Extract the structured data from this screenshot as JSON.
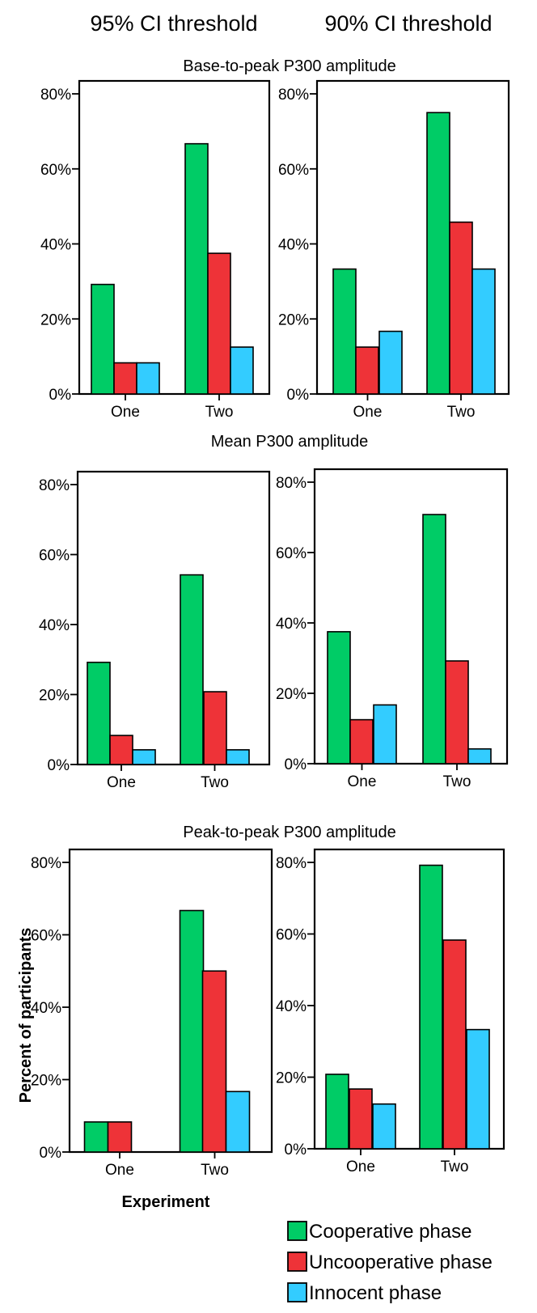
{
  "column_headers": [
    "95% CI threshold",
    "90% CI threshold"
  ],
  "section_titles": [
    "Base-to-peak P300 amplitude",
    "Mean P300 amplitude",
    "Peak-to-peak P300 amplitude"
  ],
  "axis": {
    "ylabel": "Percent of participants",
    "xlabel": "Experiment"
  },
  "legend": [
    {
      "label": "Cooperative phase",
      "color": "#00cc66"
    },
    {
      "label": "Uncooperative phase",
      "color": "#ee3338"
    },
    {
      "label": "Innocent phase",
      "color": "#33ccff"
    }
  ],
  "chart_data": [
    {
      "type": "bar",
      "row": 0,
      "col": 0,
      "title": "Base-to-peak P300 amplitude",
      "xlabel": "",
      "ylabel": "",
      "categories": [
        "One",
        "Two"
      ],
      "yticks": [
        "0%",
        "20%",
        "40%",
        "60%",
        "80%"
      ],
      "ylim": [
        0,
        80
      ],
      "series": [
        {
          "name": "Cooperative phase",
          "values": [
            29.2,
            66.7
          ]
        },
        {
          "name": "Uncooperative phase",
          "values": [
            8.3,
            37.5
          ]
        },
        {
          "name": "Innocent phase",
          "values": [
            8.3,
            12.5
          ]
        }
      ]
    },
    {
      "type": "bar",
      "row": 0,
      "col": 1,
      "title": "Base-to-peak P300 amplitude",
      "xlabel": "",
      "ylabel": "",
      "categories": [
        "One",
        "Two"
      ],
      "yticks": [
        "0%",
        "20%",
        "40%",
        "60%",
        "80%"
      ],
      "ylim": [
        0,
        80
      ],
      "series": [
        {
          "name": "Cooperative phase",
          "values": [
            33.3,
            75.0
          ]
        },
        {
          "name": "Uncooperative phase",
          "values": [
            12.5,
            45.8
          ]
        },
        {
          "name": "Innocent phase",
          "values": [
            16.7,
            33.3
          ]
        }
      ]
    },
    {
      "type": "bar",
      "row": 1,
      "col": 0,
      "title": "Mean P300 amplitude",
      "xlabel": "",
      "ylabel": "",
      "categories": [
        "One",
        "Two"
      ],
      "yticks": [
        "0%",
        "20%",
        "40%",
        "60%",
        "80%"
      ],
      "ylim": [
        0,
        80
      ],
      "series": [
        {
          "name": "Cooperative phase",
          "values": [
            29.2,
            54.2
          ]
        },
        {
          "name": "Uncooperative phase",
          "values": [
            8.3,
            20.8
          ]
        },
        {
          "name": "Innocent phase",
          "values": [
            4.2,
            4.2
          ]
        }
      ]
    },
    {
      "type": "bar",
      "row": 1,
      "col": 1,
      "title": "Mean P300 amplitude",
      "xlabel": "",
      "ylabel": "",
      "categories": [
        "One",
        "Two"
      ],
      "yticks": [
        "0%",
        "20%",
        "40%",
        "60%",
        "80%"
      ],
      "ylim": [
        0,
        80
      ],
      "series": [
        {
          "name": "Cooperative phase",
          "values": [
            37.5,
            70.8
          ]
        },
        {
          "name": "Uncooperative phase",
          "values": [
            12.5,
            29.2
          ]
        },
        {
          "name": "Innocent phase",
          "values": [
            16.7,
            4.2
          ]
        }
      ]
    },
    {
      "type": "bar",
      "row": 2,
      "col": 0,
      "title": "Peak-to-peak P300 amplitude",
      "xlabel": "Experiment",
      "ylabel": "Percent of participants",
      "categories": [
        "One",
        "Two"
      ],
      "yticks": [
        "0%",
        "20%",
        "40%",
        "60%",
        "80%"
      ],
      "ylim": [
        0,
        80
      ],
      "series": [
        {
          "name": "Cooperative phase",
          "values": [
            8.3,
            66.7
          ]
        },
        {
          "name": "Uncooperative phase",
          "values": [
            8.3,
            50.0
          ]
        },
        {
          "name": "Innocent phase",
          "values": [
            0,
            16.7
          ]
        }
      ]
    },
    {
      "type": "bar",
      "row": 2,
      "col": 1,
      "title": "Peak-to-peak P300 amplitude",
      "xlabel": "",
      "ylabel": "",
      "categories": [
        "One",
        "Two"
      ],
      "yticks": [
        "0%",
        "20%",
        "40%",
        "60%",
        "80%"
      ],
      "ylim": [
        0,
        80
      ],
      "series": [
        {
          "name": "Cooperative phase",
          "values": [
            20.8,
            79.2
          ]
        },
        {
          "name": "Uncooperative phase",
          "values": [
            16.7,
            58.3
          ]
        },
        {
          "name": "Innocent phase",
          "values": [
            12.5,
            33.3
          ]
        }
      ]
    }
  ]
}
